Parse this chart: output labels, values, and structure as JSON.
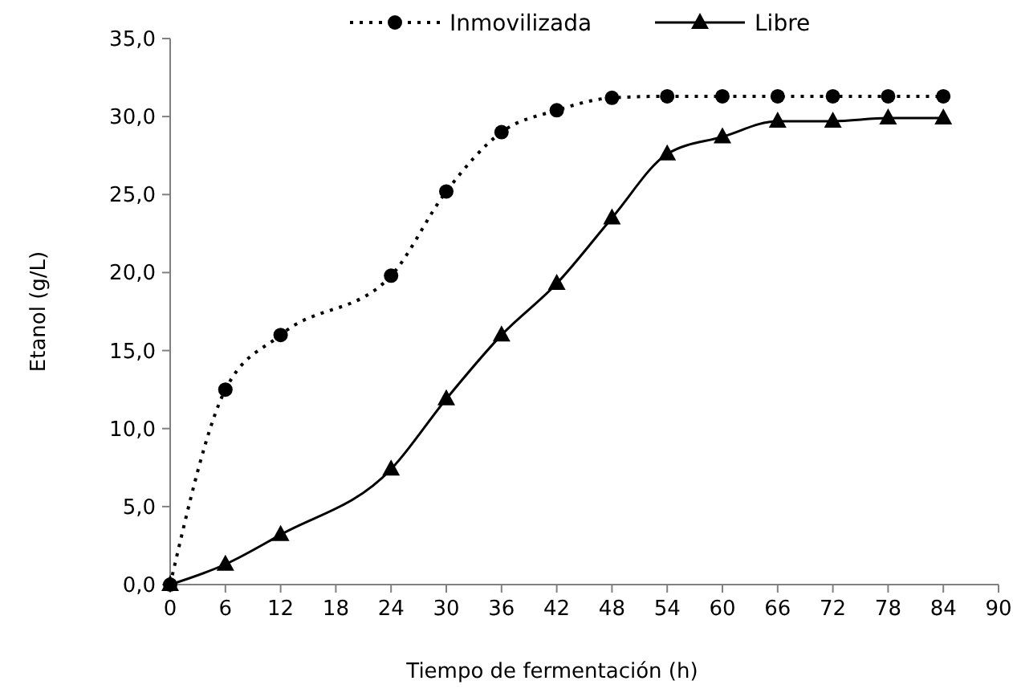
{
  "chart_data": {
    "type": "line",
    "xlabel": "Tiempo de fermentación (h)",
    "ylabel": "Etanol (g/L)",
    "x": [
      0,
      6,
      12,
      24,
      30,
      36,
      42,
      48,
      54,
      60,
      66,
      72,
      78,
      84
    ],
    "series": [
      {
        "name": "Inmovilizada",
        "color": "#000000",
        "marker": "circle",
        "line_style": "dotted",
        "values": [
          0,
          12.5,
          16,
          19.8,
          25.2,
          29,
          30.4,
          31.2,
          31.3,
          31.3,
          31.3,
          31.3,
          31.3,
          31.3
        ]
      },
      {
        "name": "Libre",
        "color": "#000000",
        "marker": "triangle",
        "line_style": "solid",
        "values": [
          0,
          1.3,
          3.2,
          7.4,
          11.9,
          16,
          19.3,
          23.5,
          27.6,
          28.7,
          29.7,
          29.7,
          29.9,
          29.9
        ]
      }
    ],
    "xlim": [
      0,
      90
    ],
    "xticks": [
      0,
      6,
      12,
      18,
      24,
      30,
      36,
      42,
      48,
      54,
      60,
      66,
      72,
      78,
      84,
      90
    ],
    "ylim": [
      0,
      35
    ],
    "yticks": [
      {
        "value": 0,
        "label": "0,0"
      },
      {
        "value": 5,
        "label": "5,0"
      },
      {
        "value": 10,
        "label": "10,0"
      },
      {
        "value": 15,
        "label": "15,0"
      },
      {
        "value": 20,
        "label": "20,0"
      },
      {
        "value": 25,
        "label": "25,0"
      },
      {
        "value": 30,
        "label": "30,0"
      },
      {
        "value": 35,
        "label": "35,0"
      }
    ],
    "grid": false,
    "legend": "top"
  }
}
